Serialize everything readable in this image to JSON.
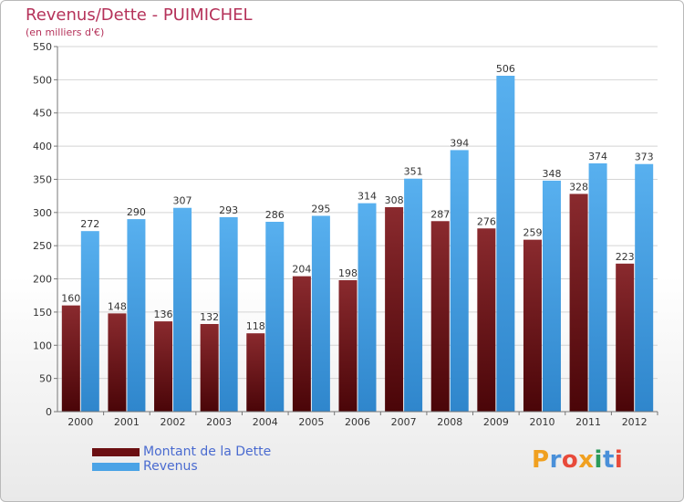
{
  "title": "Revenus/Dette - PUIMICHEL",
  "subtitle": "(en milliers d'€)",
  "colors": {
    "debt": "#7a1418",
    "revenue": "#4aa3e6",
    "title": "#b5325a",
    "legend_text": "#4a6bd0"
  },
  "legend": [
    {
      "label": "Montant de la Dette",
      "color": "#6b0f12"
    },
    {
      "label": "Revenus",
      "color": "#4aa3e6"
    }
  ],
  "logo": {
    "text": "Proxiti",
    "letters": [
      {
        "ch": "P",
        "color": "#f0a020"
      },
      {
        "ch": "r",
        "color": "#4a90d9"
      },
      {
        "ch": "o",
        "color": "#e84a3a"
      },
      {
        "ch": "x",
        "color": "#f0a020"
      },
      {
        "ch": "i",
        "color": "#2a9a5a"
      },
      {
        "ch": "t",
        "color": "#4a90d9"
      },
      {
        "ch": "i",
        "color": "#e84a3a"
      }
    ]
  },
  "chart_data": {
    "type": "bar",
    "title": "Revenus/Dette - PUIMICHEL",
    "subtitle": "(en milliers d'€)",
    "xlabel": "",
    "ylabel": "",
    "ylim": [
      0,
      550
    ],
    "yticks": [
      0,
      50,
      100,
      150,
      200,
      250,
      300,
      350,
      400,
      450,
      500,
      550
    ],
    "grid": true,
    "legend_position": "bottom-left",
    "categories": [
      "2000",
      "2001",
      "2002",
      "2003",
      "2004",
      "2005",
      "2006",
      "2007",
      "2008",
      "2009",
      "2010",
      "2011",
      "2012"
    ],
    "series": [
      {
        "name": "Montant de la Dette",
        "values": [
          160,
          148,
          136,
          132,
          118,
          204,
          198,
          308,
          287,
          276,
          259,
          328,
          223
        ]
      },
      {
        "name": "Revenus",
        "values": [
          272,
          290,
          307,
          293,
          286,
          295,
          314,
          351,
          394,
          506,
          348,
          374,
          373
        ]
      }
    ]
  }
}
